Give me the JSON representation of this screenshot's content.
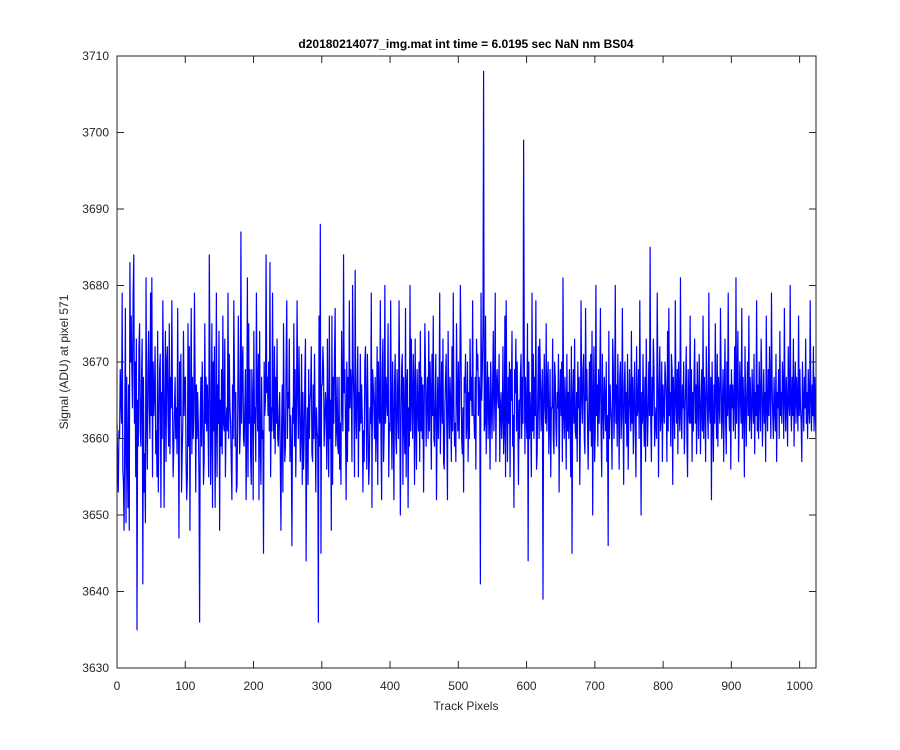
{
  "chart_data": {
    "type": "line",
    "title": "d20180214077_img.mat int time = 6.0195 sec  NaN nm BS04",
    "xlabel": "Track Pixels",
    "ylabel": "Signal (ADU) at pixel 571",
    "xlim": [
      0,
      1024
    ],
    "ylim": [
      3630,
      3710
    ],
    "xticks": [
      0,
      100,
      200,
      300,
      400,
      500,
      600,
      700,
      800,
      900,
      1000
    ],
    "yticks": [
      3630,
      3640,
      3650,
      3660,
      3670,
      3680,
      3690,
      3700,
      3710
    ],
    "grid": false,
    "line_color": "#0000ff",
    "series": [
      {
        "values": [
          3662,
          3657,
          3653,
          3661,
          3660,
          3669,
          3665,
          3662,
          3679,
          3656,
          3654,
          3648,
          3662,
          3677,
          3649,
          3668,
          3658,
          3651,
          3667,
          3648,
          3683,
          3670,
          3676,
          3669,
          3664,
          3679,
          3684,
          3662,
          3670,
          3655,
          3673,
          3635,
          3665,
          3659,
          3672,
          3675,
          3661,
          3659,
          3668,
          3673,
          3641,
          3668,
          3653,
          3658,
          3649,
          3681,
          3663,
          3656,
          3669,
          3674,
          3664,
          3660,
          3679,
          3663,
          3681,
          3655,
          3670,
          3663,
          3666,
          3672,
          3658,
          3661,
          3655,
          3674,
          3653,
          3662,
          3669,
          3671,
          3651,
          3666,
          3660,
          3678,
          3668,
          3651,
          3664,
          3674,
          3657,
          3670,
          3672,
          3663,
          3659,
          3675,
          3658,
          3668,
          3664,
          3678,
          3664,
          3655,
          3659,
          3664,
          3668,
          3660,
          3664,
          3658,
          3677,
          3662,
          3647,
          3670,
          3663,
          3671,
          3653,
          3658,
          3662,
          3674,
          3663,
          3668,
          3668,
          3657,
          3652,
          3655,
          3675,
          3659,
          3672,
          3648,
          3665,
          3677,
          3658,
          3668,
          3660,
          3663,
          3679,
          3668,
          3653,
          3667,
          3660,
          3666,
          3662,
          3655,
          3636,
          3663,
          3668,
          3659,
          3670,
          3664,
          3654,
          3657,
          3675,
          3662,
          3668,
          3661,
          3667,
          3662,
          3655,
          3684,
          3670,
          3654,
          3661,
          3675,
          3651,
          3670,
          3661,
          3672,
          3651,
          3662,
          3679,
          3655,
          3667,
          3662,
          3674,
          3648,
          3665,
          3659,
          3669,
          3658,
          3676,
          3662,
          3661,
          3673,
          3655,
          3662,
          3664,
          3661,
          3679,
          3660,
          3671,
          3664,
          3662,
          3657,
          3652,
          3667,
          3660,
          3678,
          3668,
          3659,
          3666,
          3653,
          3654,
          3663,
          3676,
          3667,
          3658,
          3661,
          3687,
          3662,
          3669,
          3672,
          3660,
          3659,
          3664,
          3669,
          3652,
          3660,
          3681,
          3655,
          3675,
          3662,
          3669,
          3658,
          3654,
          3669,
          3665,
          3652,
          3674,
          3662,
          3664,
          3657,
          3679,
          3666,
          3661,
          3671,
          3652,
          3674,
          3659,
          3654,
          3668,
          3660,
          3661,
          3645,
          3670,
          3663,
          3665,
          3684,
          3666,
          3668,
          3663,
          3670,
          3661,
          3683,
          3655,
          3664,
          3661,
          3679,
          3664,
          3660,
          3672,
          3658,
          3668,
          3662,
          3673,
          3660,
          3659,
          3663,
          3666,
          3657,
          3648,
          3661,
          3667,
          3653,
          3675,
          3664,
          3657,
          3659,
          3670,
          3678,
          3660,
          3666,
          3664,
          3673,
          3657,
          3663,
          3659,
          3646,
          3664,
          3662,
          3675,
          3659,
          3669,
          3655,
          3663,
          3678,
          3666,
          3660,
          3672,
          3664,
          3657,
          3661,
          3671,
          3654,
          3666,
          3656,
          3660,
          3668,
          3673,
          3644,
          3660,
          3664,
          3654,
          3669,
          3660,
          3665,
          3666,
          3672,
          3658,
          3657,
          3667,
          3660,
          3671,
          3663,
          3653,
          3664,
          3661,
          3660,
          3636,
          3676,
          3659,
          3688,
          3645,
          3667,
          3667,
          3672,
          3669,
          3659,
          3662,
          3666,
          3664,
          3656,
          3673,
          3661,
          3655,
          3676,
          3660,
          3665,
          3648,
          3676,
          3654,
          3668,
          3662,
          3671,
          3677,
          3659,
          3661,
          3668,
          3659,
          3658,
          3668,
          3656,
          3662,
          3654,
          3674,
          3665,
          3661,
          3684,
          3666,
          3669,
          3662,
          3652,
          3670,
          3657,
          3668,
          3661,
          3678,
          3664,
          3669,
          3667,
          3657,
          3680,
          3669,
          3665,
          3655,
          3682,
          3663,
          3660,
          3667,
          3672,
          3655,
          3666,
          3661,
          3671,
          3662,
          3667,
          3663,
          3653,
          3661,
          3657,
          3670,
          3672,
          3664,
          3656,
          3671,
          3663,
          3654,
          3657,
          3664,
          3662,
          3679,
          3651,
          3669,
          3667,
          3664,
          3660,
          3668,
          3657,
          3661,
          3672,
          3654,
          3670,
          3664,
          3662,
          3678,
          3660,
          3652,
          3669,
          3673,
          3657,
          3661,
          3680,
          3662,
          3668,
          3665,
          3663,
          3675,
          3655,
          3662,
          3661,
          3678,
          3664,
          3656,
          3670,
          3663,
          3652,
          3667,
          3671,
          3660,
          3658,
          3669,
          3664,
          3660,
          3678,
          3667,
          3650,
          3662,
          3669,
          3671,
          3654,
          3668,
          3662,
          3658,
          3677,
          3655,
          3667,
          3669,
          3651,
          3664,
          3659,
          3680,
          3661,
          3673,
          3665,
          3660,
          3671,
          3667,
          3654,
          3673,
          3662,
          3656,
          3669,
          3664,
          3661,
          3670,
          3657,
          3674,
          3661,
          3668,
          3660,
          3667,
          3653,
          3664,
          3675,
          3669,
          3659,
          3665,
          3668,
          3660,
          3674,
          3661,
          3670,
          3666,
          3656,
          3671,
          3663,
          3676,
          3660,
          3659,
          3666,
          3671,
          3652,
          3662,
          3668,
          3660,
          3665,
          3679,
          3658,
          3664,
          3670,
          3662,
          3673,
          3657,
          3656,
          3664,
          3668,
          3671,
          3661,
          3652,
          3674,
          3665,
          3660,
          3668,
          3664,
          3657,
          3672,
          3661,
          3679,
          3664,
          3659,
          3662,
          3657,
          3675,
          3666,
          3661,
          3670,
          3660,
          3665,
          3680,
          3672,
          3660,
          3658,
          3664,
          3653,
          3668,
          3666,
          3671,
          3660,
          3662,
          3670,
          3657,
          3666,
          3660,
          3673,
          3665,
          3668,
          3663,
          3678,
          3663,
          3663,
          3660,
          3668,
          3656,
          3673,
          3669,
          3671,
          3663,
          3668,
          3666,
          3641,
          3679,
          3665,
          3669,
          3674,
          3708,
          3661,
          3662,
          3676,
          3658,
          3665,
          3670,
          3660,
          3668,
          3664,
          3656,
          3670,
          3665,
          3660,
          3667,
          3674,
          3661,
          3666,
          3679,
          3657,
          3667,
          3669,
          3665,
          3664,
          3671,
          3657,
          3664,
          3666,
          3660,
          3663,
          3672,
          3658,
          3661,
          3676,
          3655,
          3678,
          3664,
          3657,
          3668,
          3662,
          3670,
          3655,
          3669,
          3665,
          3674,
          3659,
          3663,
          3651,
          3669,
          3666,
          3673,
          3661,
          3670,
          3663,
          3654,
          3665,
          3660,
          3668,
          3671,
          3660,
          3668,
          3662,
          3699,
          3672,
          3658,
          3668,
          3663,
          3660,
          3675,
          3644,
          3670,
          3660,
          3666,
          3662,
          3655,
          3679,
          3661,
          3671,
          3660,
          3668,
          3663,
          3678,
          3656,
          3658,
          3666,
          3672,
          3660,
          3673,
          3668,
          3661,
          3665,
          3669,
          3639,
          3665,
          3671,
          3664,
          3662,
          3675,
          3661,
          3667,
          3670,
          3658,
          3662,
          3669,
          3655,
          3664,
          3664,
          3673,
          3660,
          3658,
          3670,
          3668,
          3662,
          3659,
          3666,
          3664,
          3671,
          3653,
          3665,
          3669,
          3663,
          3670,
          3657,
          3681,
          3663,
          3660,
          3668,
          3664,
          3656,
          3671,
          3661,
          3666,
          3660,
          3669,
          3663,
          3655,
          3672,
          3645,
          3665,
          3669,
          3662,
          3673,
          3661,
          3660,
          3666,
          3657,
          3670,
          3664,
          3668,
          3654,
          3662,
          3678,
          3665,
          3662,
          3669,
          3671,
          3660,
          3658,
          3677,
          3665,
          3669,
          3662,
          3656,
          3664,
          3670,
          3661,
          3671,
          3659,
          3674,
          3650,
          3665,
          3672,
          3657,
          3661,
          3680,
          3663,
          3667,
          3659,
          3669,
          3662,
          3667,
          3677,
          3661,
          3655,
          3671,
          3664,
          3660,
          3668,
          3665,
          3661,
          3670,
          3657,
          3663,
          3646,
          3674,
          3660,
          3667,
          3664,
          3662,
          3656,
          3673,
          3669,
          3660,
          3665,
          3680,
          3662,
          3667,
          3659,
          3671,
          3664,
          3656,
          3668,
          3670,
          3660,
          3663,
          3677,
          3663,
          3654,
          3667,
          3670,
          3662,
          3666,
          3659,
          3671,
          3656,
          3663,
          3669,
          3665,
          3661,
          3674,
          3662,
          3668,
          3658,
          3665,
          3670,
          3661,
          3655,
          3672,
          3663,
          3664,
          3669,
          3660,
          3678,
          3665,
          3650,
          3666,
          3662,
          3671,
          3663,
          3659,
          3668,
          3657,
          3673,
          3665,
          3659,
          3664,
          3670,
          3663,
          3685,
          3662,
          3657,
          3668,
          3663,
          3673,
          3669,
          3659,
          3662,
          3664,
          3660,
          3679,
          3668,
          3655,
          3666,
          3672,
          3661,
          3663,
          3670,
          3657,
          3667,
          3664,
          3662,
          3670,
          3668,
          3665,
          3657,
          3674,
          3661,
          3677,
          3663,
          3666,
          3659,
          3671,
          3669,
          3654,
          3668,
          3664,
          3660,
          3678,
          3665,
          3662,
          3669,
          3658,
          3670,
          3664,
          3661,
          3681,
          3663,
          3660,
          3667,
          3664,
          3670,
          3658,
          3663,
          3667,
          3672,
          3660,
          3655,
          3669,
          3664,
          3662,
          3676,
          3662,
          3669,
          3657,
          3666,
          3661,
          3668,
          3673,
          3662,
          3667,
          3658,
          3670,
          3665,
          3660,
          3671,
          3666,
          3658,
          3664,
          3669,
          3661,
          3676,
          3660,
          3668,
          3664,
          3657,
          3672,
          3667,
          3663,
          3660,
          3679,
          3664,
          3662,
          3668,
          3652,
          3670,
          3663,
          3657,
          3667,
          3662,
          3675,
          3665,
          3660,
          3671,
          3659,
          3668,
          3665,
          3662,
          3677,
          3668,
          3660,
          3664,
          3669,
          3657,
          3666,
          3673,
          3662,
          3658,
          3670,
          3663,
          3679,
          3664,
          3661,
          3667,
          3656,
          3669,
          3664,
          3667,
          3661,
          3665,
          3672,
          3660,
          3681,
          3662,
          3668,
          3674,
          3657,
          3663,
          3670,
          3665,
          3662,
          3677,
          3660,
          3668,
          3664,
          3655,
          3672,
          3665,
          3659,
          3666,
          3670,
          3663,
          3676,
          3661,
          3668,
          3664,
          3660,
          3669,
          3665,
          3662,
          3671,
          3658,
          3666,
          3663,
          3678,
          3661,
          3667,
          3660,
          3670,
          3665,
          3661,
          3673,
          3668,
          3659,
          3664,
          3669,
          3662,
          3666,
          3657,
          3676,
          3664,
          3661,
          3669,
          3663,
          3672,
          3666,
          3660,
          3679,
          3667,
          3663,
          3660,
          3668,
          3664,
          3661,
          3671,
          3657,
          3666,
          3664,
          3669,
          3660,
          3674,
          3663,
          3666,
          3662,
          3670,
          3667,
          3660,
          3677,
          3665,
          3661,
          3668,
          3664,
          3659,
          3672,
          3665,
          3663,
          3680,
          3664,
          3661,
          3668,
          3663,
          3673,
          3659,
          3666,
          3670,
          3662,
          3668,
          3665,
          3661,
          3676,
          3663,
          3669,
          3664,
          3662,
          3657,
          3670,
          3665,
          3661,
          3668,
          3664,
          3673,
          3662,
          3666,
          3660,
          3669,
          3664,
          3662,
          3678,
          3665,
          3661,
          3667,
          3663,
          3672,
          3661,
          3668,
          3663,
          3660
        ]
      }
    ]
  }
}
